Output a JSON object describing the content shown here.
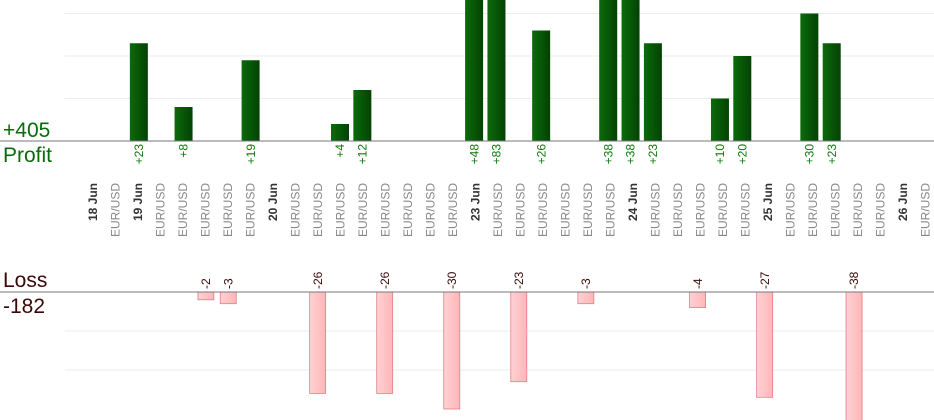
{
  "summary": {
    "profit_total": "+405",
    "profit_label": "Profit",
    "loss_label": "Loss",
    "loss_total": "-182"
  },
  "colors": {
    "profit_bar": "#0b6b0b",
    "profit_bar_dark": "#034203",
    "profit_text": "#0a7a0a",
    "loss_bar": "#ffb6b9",
    "loss_bar_edge": "#e07f85",
    "loss_text": "#3a0808",
    "axis": "#777777",
    "grid": "#ececec",
    "date_text": "#333333",
    "pair_text": "#888888"
  },
  "chart_data": {
    "type": "bar",
    "grid": true,
    "profit_gridlines": [
      10,
      20,
      30
    ],
    "loss_gridlines": [
      10,
      20
    ],
    "x_labels": [
      {
        "kind": "date",
        "text": "18 Jun"
      },
      {
        "kind": "pair",
        "text": "EUR/USD"
      },
      {
        "kind": "date",
        "text": "19 Jun"
      },
      {
        "kind": "pair",
        "text": "EUR/USD"
      },
      {
        "kind": "pair",
        "text": "EUR/USD"
      },
      {
        "kind": "pair",
        "text": "EUR/USD"
      },
      {
        "kind": "pair",
        "text": "EUR/USD"
      },
      {
        "kind": "pair",
        "text": "EUR/USD"
      },
      {
        "kind": "date",
        "text": "20 Jun"
      },
      {
        "kind": "pair",
        "text": "EUR/USD"
      },
      {
        "kind": "pair",
        "text": "EUR/USD"
      },
      {
        "kind": "pair",
        "text": "EUR/USD"
      },
      {
        "kind": "pair",
        "text": "EUR/USD"
      },
      {
        "kind": "pair",
        "text": "EUR/USD"
      },
      {
        "kind": "pair",
        "text": "EUR/USD"
      },
      {
        "kind": "pair",
        "text": "EUR/USD"
      },
      {
        "kind": "pair",
        "text": "EUR/USD"
      },
      {
        "kind": "date",
        "text": "23 Jun"
      },
      {
        "kind": "pair",
        "text": "EUR/USD"
      },
      {
        "kind": "pair",
        "text": "EUR/USD"
      },
      {
        "kind": "pair",
        "text": "EUR/USD"
      },
      {
        "kind": "pair",
        "text": "EUR/USD"
      },
      {
        "kind": "pair",
        "text": "EUR/USD"
      },
      {
        "kind": "pair",
        "text": "EUR/USD"
      },
      {
        "kind": "date",
        "text": "24 Jun"
      },
      {
        "kind": "pair",
        "text": "EUR/USD"
      },
      {
        "kind": "pair",
        "text": "EUR/USD"
      },
      {
        "kind": "pair",
        "text": "EUR/USD"
      },
      {
        "kind": "pair",
        "text": "EUR/USD"
      },
      {
        "kind": "pair",
        "text": "EUR/USD"
      },
      {
        "kind": "date",
        "text": "25 Jun"
      },
      {
        "kind": "pair",
        "text": "EUR/USD"
      },
      {
        "kind": "pair",
        "text": "EUR/USD"
      },
      {
        "kind": "pair",
        "text": "EUR/USD"
      },
      {
        "kind": "pair",
        "text": "EUR/USD"
      },
      {
        "kind": "pair",
        "text": "EUR/USD"
      },
      {
        "kind": "date",
        "text": "26 Jun"
      },
      {
        "kind": "pair",
        "text": "EUR/USD"
      },
      {
        "kind": "pair",
        "text": "EUR/USD"
      },
      {
        "kind": "pair",
        "text": "EUR/USD"
      },
      {
        "kind": "pair",
        "text": "EUR/USD"
      }
    ],
    "values": [
      null,
      23,
      null,
      8,
      -2,
      -3,
      19,
      null,
      null,
      -26,
      4,
      12,
      -26,
      null,
      null,
      -30,
      48,
      83,
      -23,
      26,
      null,
      -3,
      38,
      38,
      23,
      null,
      -4,
      10,
      20,
      -27,
      null,
      30,
      23,
      -38
    ],
    "value_labels": [
      "",
      "+23",
      "",
      "+8",
      "-2",
      "-3",
      "+19",
      "",
      "",
      "-26",
      "+4",
      "+12",
      "-26",
      "",
      "",
      "-30",
      "+48",
      "+83",
      "-23",
      "+26",
      "",
      "-3",
      "+38",
      "+38",
      "+23",
      "",
      "-4",
      "+10",
      "+20",
      "-27",
      "",
      "+30",
      "+23",
      "-38"
    ]
  }
}
